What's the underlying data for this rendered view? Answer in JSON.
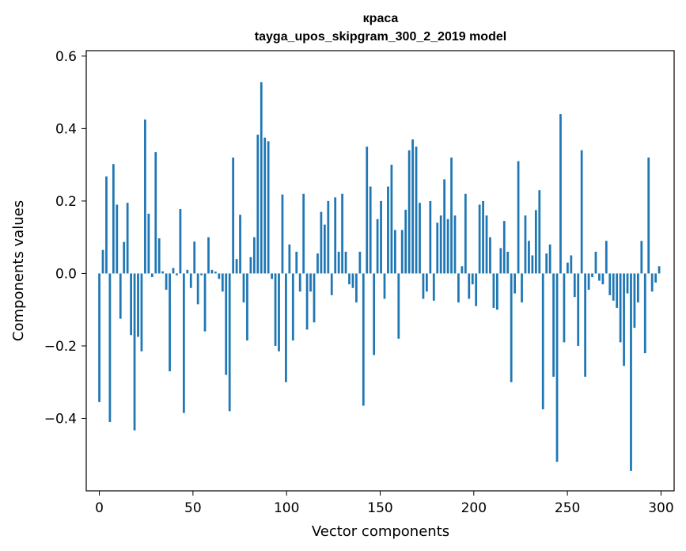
{
  "chart_data": {
    "type": "bar",
    "title": "краса",
    "subtitle": "tayga_upos_skipgram_300_2_2019 model",
    "xlabel": "Vector components",
    "ylabel": "Components values",
    "xlim": [
      -7,
      307
    ],
    "ylim": [
      -0.6,
      0.615
    ],
    "xticks": [
      0,
      50,
      100,
      150,
      200,
      250,
      300
    ],
    "yticks": [
      -0.4,
      -0.2,
      0.0,
      0.2,
      0.4,
      0.6
    ],
    "xtick_labels": [
      "0",
      "50",
      "100",
      "150",
      "200",
      "250",
      "300"
    ],
    "ytick_labels": [
      "−0.4",
      "−0.2",
      "0.0",
      "0.2",
      "0.4",
      "0.6"
    ],
    "bar_color": "#1f77b4",
    "values": [
      -0.355,
      0.065,
      0.268,
      -0.41,
      0.302,
      0.19,
      -0.125,
      0.087,
      0.195,
      -0.17,
      -0.433,
      -0.175,
      -0.215,
      0.425,
      0.165,
      -0.01,
      0.335,
      0.097,
      0.006,
      -0.045,
      -0.27,
      0.015,
      -0.005,
      0.178,
      -0.385,
      0.01,
      -0.04,
      0.088,
      -0.085,
      -0.005,
      -0.16,
      0.1,
      0.01,
      0.005,
      -0.015,
      -0.05,
      -0.28,
      -0.38,
      0.32,
      0.04,
      0.162,
      -0.08,
      -0.185,
      0.045,
      0.1,
      0.383,
      0.528,
      0.375,
      0.365,
      -0.015,
      -0.2,
      -0.215,
      0.218,
      -0.3,
      0.08,
      -0.185,
      0.06,
      -0.05,
      0.22,
      -0.155,
      -0.05,
      -0.135,
      0.055,
      0.17,
      0.135,
      0.2,
      -0.06,
      0.21,
      0.06,
      0.22,
      0.06,
      -0.03,
      -0.04,
      -0.08,
      0.06,
      -0.365,
      0.35,
      0.24,
      -0.225,
      0.15,
      0.2,
      -0.07,
      0.24,
      0.3,
      0.12,
      -0.18,
      0.12,
      0.176,
      0.34,
      0.37,
      0.35,
      0.195,
      -0.07,
      -0.05,
      0.2,
      -0.075,
      0.14,
      0.16,
      0.26,
      0.15,
      0.32,
      0.16,
      -0.08,
      0.02,
      0.22,
      -0.07,
      -0.03,
      -0.09,
      0.19,
      0.2,
      0.16,
      0.1,
      -0.095,
      -0.1,
      0.07,
      0.145,
      0.06,
      -0.3,
      -0.055,
      0.31,
      -0.08,
      0.16,
      0.09,
      0.05,
      0.175,
      0.23,
      -0.375,
      0.055,
      0.08,
      -0.285,
      -0.52,
      0.44,
      -0.19,
      0.03,
      0.05,
      -0.065,
      -0.2,
      0.34,
      -0.285,
      -0.045,
      -0.01,
      0.06,
      -0.02,
      -0.03,
      0.09,
      -0.06,
      -0.075,
      -0.095,
      -0.19,
      -0.255,
      -0.055,
      -0.545,
      -0.15,
      -0.08,
      0.09,
      -0.22,
      0.32,
      -0.05,
      -0.025,
      0.02
    ]
  }
}
